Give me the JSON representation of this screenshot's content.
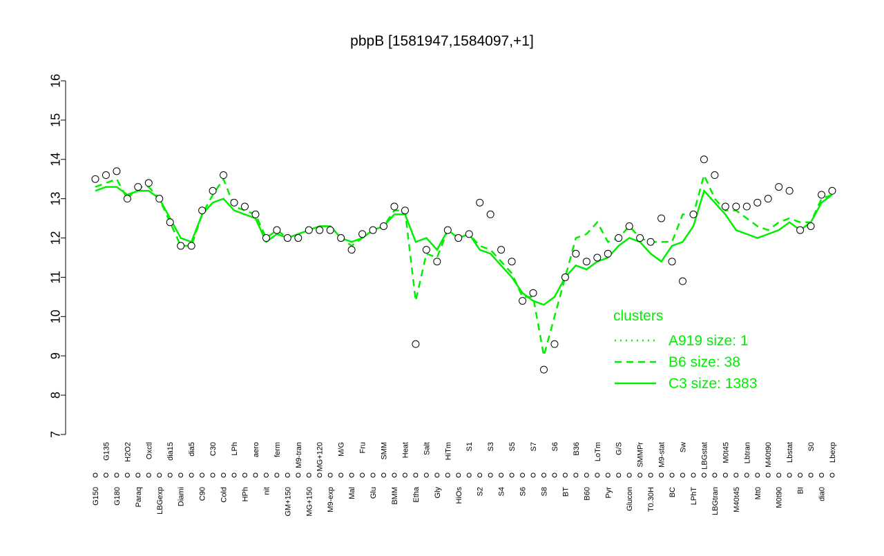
{
  "chart_data": {
    "type": "line",
    "title": "pbpB [1581947,1584097,+1]",
    "categories": [
      "G150",
      "G135",
      "G180",
      "H2O2",
      "Paraq",
      "Oxctl",
      "LBGexp",
      "dia15",
      "Diami",
      "dia5",
      "C90",
      "C30",
      "Cold",
      "LPh",
      "HPh",
      "aero",
      "nit",
      "ferm",
      "GM+150",
      "M9-tran",
      "MG+150",
      "MG+120",
      "M9-exp",
      "M/G",
      "Mal",
      "Fru",
      "Glu",
      "SMM",
      "BMM",
      "Heat",
      "Etha",
      "Salt",
      "Gly",
      "HiTm",
      "HiOs",
      "S1",
      "S2",
      "S3",
      "S4",
      "S5",
      "S6",
      "S7",
      "S8",
      "S6",
      "BT",
      "B36",
      "B60",
      "LoTm",
      "Pyr",
      "G/S",
      "Glucon",
      "SMMPr",
      "T0.30H",
      "M9-stat",
      "BC",
      "Sw",
      "LPhT",
      "LBGstat",
      "LBGtran",
      "M0t45",
      "M40t45",
      "Lbtran",
      "Mt0",
      "M40t90",
      "M0t90",
      "Lbstat",
      "BI",
      "S0",
      "dia0",
      "Lbexp"
    ],
    "values": [
      13.5,
      13.6,
      13.7,
      13.0,
      13.3,
      13.4,
      13.0,
      12.4,
      11.8,
      11.8,
      12.7,
      13.2,
      13.6,
      12.9,
      12.8,
      12.6,
      12.0,
      12.2,
      12.0,
      12.0,
      12.2,
      12.2,
      12.2,
      12.0,
      11.7,
      12.1,
      12.2,
      12.3,
      12.8,
      12.7,
      9.3,
      11.7,
      11.4,
      12.2,
      12.0,
      12.1,
      12.9,
      12.6,
      11.7,
      11.4,
      10.4,
      10.6,
      8.65,
      9.3,
      11.0,
      11.6,
      11.4,
      11.5,
      11.6,
      12.0,
      12.3,
      12.0,
      11.9,
      12.5,
      11.4,
      10.9,
      12.6,
      14.0,
      13.6,
      12.8,
      12.8,
      12.8,
      12.9,
      13.0,
      13.3,
      13.2,
      12.2,
      12.3,
      13.1,
      13.2
    ],
    "legend_title": "clusters",
    "series": [
      {
        "name": "A919 size: 1",
        "color": "#00ee00",
        "dash": "dotted",
        "values": [
          null,
          null,
          null,
          null,
          null,
          null,
          null,
          null,
          null,
          null,
          null,
          null,
          null,
          null,
          null,
          null,
          null,
          null,
          null,
          null,
          null,
          null,
          null,
          null,
          null,
          null,
          null,
          null,
          null,
          null,
          null,
          null,
          null,
          null,
          null,
          null,
          null,
          null,
          null,
          null,
          null,
          null,
          null,
          null,
          null,
          null,
          null,
          null,
          null,
          null,
          null,
          null,
          null,
          null,
          null,
          null,
          null,
          null,
          null,
          null,
          null,
          null,
          null,
          null,
          null,
          null,
          null,
          null,
          null,
          null
        ]
      },
      {
        "name": "B6 size: 38",
        "color": "#00ee00",
        "dash": "dashed",
        "values": [
          13.3,
          13.4,
          13.5,
          13.0,
          13.3,
          13.3,
          13.0,
          12.4,
          11.8,
          11.8,
          12.6,
          13.1,
          13.5,
          12.8,
          12.7,
          12.6,
          12.0,
          12.2,
          12.0,
          12.1,
          12.2,
          12.3,
          12.3,
          12.0,
          11.8,
          12.0,
          12.2,
          12.3,
          12.7,
          12.7,
          10.4,
          11.6,
          11.5,
          12.2,
          12.0,
          12.1,
          11.8,
          11.7,
          11.4,
          11.1,
          10.5,
          10.5,
          9.0,
          10.0,
          11.0,
          12.0,
          12.1,
          12.4,
          11.9,
          12.0,
          12.3,
          12.0,
          11.9,
          11.9,
          11.9,
          12.6,
          12.6,
          13.6,
          13.0,
          12.7,
          12.7,
          12.5,
          12.3,
          12.2,
          12.4,
          12.5,
          12.4,
          12.4,
          13.0,
          13.1
        ]
      },
      {
        "name": "C3 size: 1383",
        "color": "#00ee00",
        "dash": "solid",
        "values": [
          13.2,
          13.3,
          13.3,
          13.1,
          13.2,
          13.2,
          13.0,
          12.5,
          12.0,
          11.9,
          12.6,
          12.9,
          13.0,
          12.7,
          12.6,
          12.5,
          11.9,
          12.1,
          12.0,
          12.1,
          12.2,
          12.3,
          12.3,
          12.0,
          11.9,
          12.0,
          12.2,
          12.3,
          12.6,
          12.6,
          11.9,
          12.0,
          11.7,
          12.2,
          12.0,
          12.1,
          11.7,
          11.6,
          11.3,
          11.0,
          10.6,
          10.4,
          10.3,
          10.5,
          11.0,
          11.3,
          11.2,
          11.4,
          11.5,
          11.8,
          12.0,
          11.9,
          11.6,
          11.4,
          11.8,
          11.9,
          12.3,
          13.2,
          12.9,
          12.6,
          12.2,
          12.1,
          12.0,
          12.1,
          12.2,
          12.4,
          12.2,
          12.4,
          12.9,
          13.1
        ]
      }
    ],
    "ylim": [
      7,
      16
    ],
    "yticks": [
      7,
      8,
      9,
      10,
      11,
      12,
      13,
      14,
      15,
      16
    ]
  }
}
